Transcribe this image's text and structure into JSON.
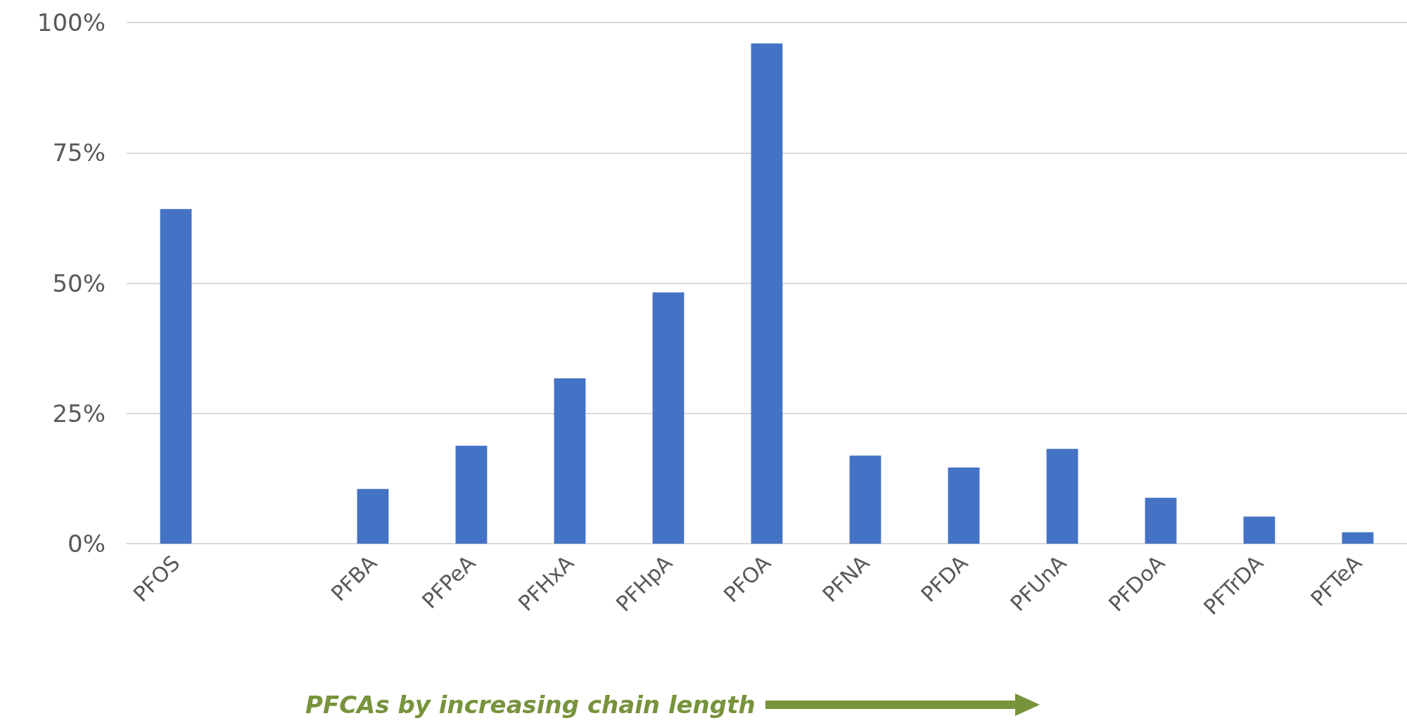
{
  "chart_data": {
    "type": "bar",
    "categories": [
      "PFOS",
      null,
      "PFBA",
      "PFPeA",
      "PFHxA",
      "PFHpA",
      "PFOA",
      "PFNA",
      "PFDA",
      "PFUnA",
      "PFDoA",
      "PFTrDA",
      "PFTeA"
    ],
    "values": [
      64.2,
      null,
      10.5,
      18.8,
      31.7,
      48.2,
      96.0,
      16.9,
      14.6,
      18.2,
      8.8,
      5.2,
      2.2
    ],
    "color": "#4472c4",
    "ylim": [
      0,
      100
    ],
    "yticks": [
      {
        "value": 0,
        "label": "0%"
      },
      {
        "value": 25,
        "label": "25%"
      },
      {
        "value": 50,
        "label": "50%"
      },
      {
        "value": 75,
        "label": "75%"
      },
      {
        "value": 100,
        "label": "100%"
      }
    ],
    "grid": "y",
    "annotations": [
      "PFCAs by increasing chain length"
    ]
  }
}
